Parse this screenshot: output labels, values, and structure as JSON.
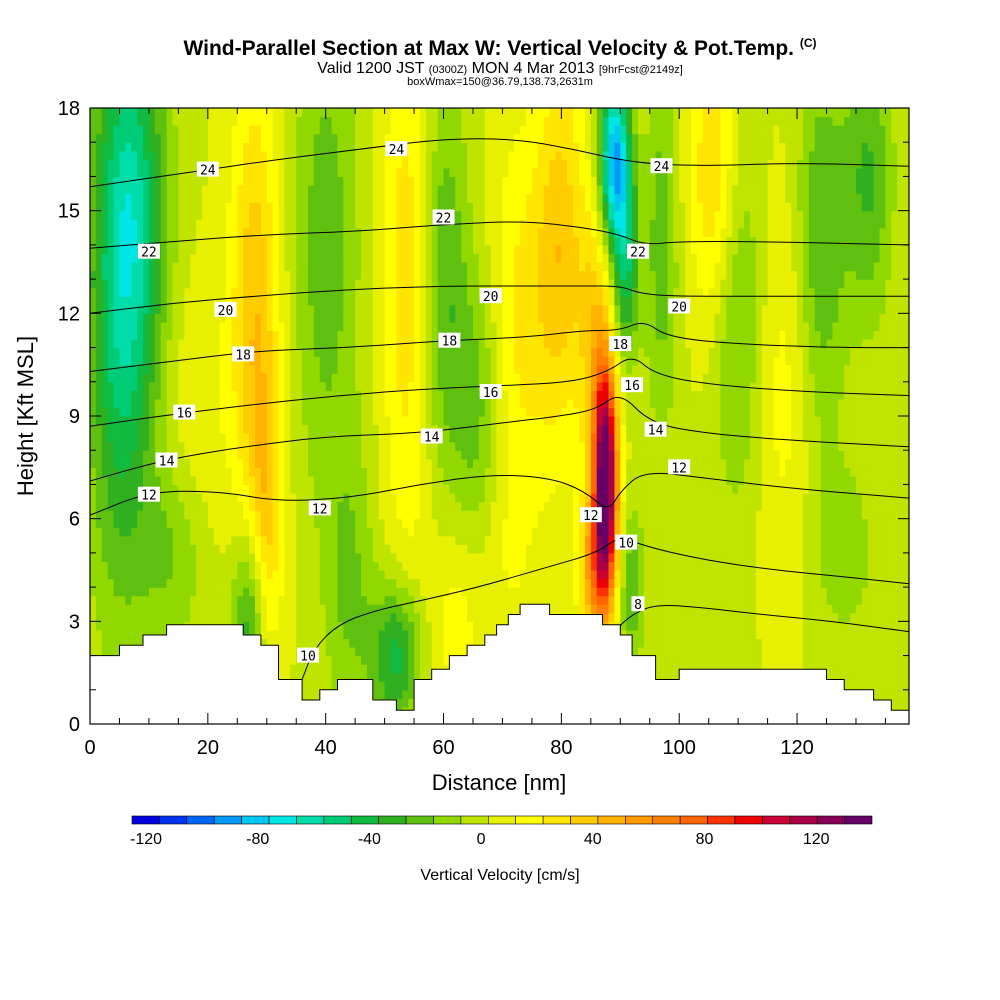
{
  "title": {
    "main": "Wind-Parallel Section at Max W: Vertical Velocity & Pot.Temp.",
    "copyright": "(C)",
    "valid_prefix": "Valid 1200 JST",
    "valid_utc": "(0300Z)",
    "valid_date": "MON 4 Mar 2013",
    "forecast": "[9hrFcst@2149z]",
    "box_info": "boxWmax=150@36.79,138.73,2631m"
  },
  "chart_data": {
    "type": "heatmap",
    "xlabel": "Distance [nm]",
    "ylabel": "Height [Kft MSL]",
    "xlim": [
      0,
      139
    ],
    "ylim": [
      0,
      18
    ],
    "x_ticks": [
      "0",
      "20",
      "40",
      "60",
      "80",
      "100",
      "120"
    ],
    "y_ticks": [
      "0",
      "3",
      "6",
      "9",
      "12",
      "15",
      "18"
    ],
    "colorbar": {
      "label": "Vertical Velocity [cm/s]",
      "range": [
        -125,
        140
      ],
      "tick_labels": [
        "-120",
        "-80",
        "-40",
        "0",
        "40",
        "80",
        "120"
      ],
      "colors": [
        "#0000e0",
        "#0033f0",
        "#0066f5",
        "#0099f5",
        "#00c8f0",
        "#00e6e6",
        "#00dcaa",
        "#00cc78",
        "#10bb40",
        "#30b020",
        "#60c010",
        "#90d800",
        "#bfe400",
        "#e6f000",
        "#ffff00",
        "#ffe600",
        "#ffcc00",
        "#ffb300",
        "#ff9900",
        "#ff7f00",
        "#ff6600",
        "#ff3300",
        "#ee0000",
        "#cc0033",
        "#aa0044",
        "#880055",
        "#660066"
      ]
    },
    "terrain_profile": [
      [
        0,
        2.0
      ],
      [
        5,
        2.0
      ],
      [
        5,
        2.3
      ],
      [
        9,
        2.3
      ],
      [
        9,
        2.6
      ],
      [
        13,
        2.6
      ],
      [
        13,
        2.9
      ],
      [
        26,
        2.9
      ],
      [
        26,
        2.6
      ],
      [
        29,
        2.6
      ],
      [
        29,
        2.3
      ],
      [
        32,
        2.3
      ],
      [
        32,
        1.3
      ],
      [
        36,
        1.3
      ],
      [
        36,
        0.7
      ],
      [
        39,
        0.7
      ],
      [
        39,
        1.0
      ],
      [
        42,
        1.0
      ],
      [
        42,
        1.3
      ],
      [
        48,
        1.3
      ],
      [
        48,
        0.7
      ],
      [
        52,
        0.7
      ],
      [
        52,
        0.4
      ],
      [
        55,
        0.4
      ],
      [
        55,
        1.3
      ],
      [
        58,
        1.3
      ],
      [
        58,
        1.6
      ],
      [
        61,
        1.6
      ],
      [
        61,
        2.0
      ],
      [
        64,
        2.0
      ],
      [
        64,
        2.3
      ],
      [
        67,
        2.3
      ],
      [
        67,
        2.6
      ],
      [
        69,
        2.6
      ],
      [
        69,
        2.9
      ],
      [
        71,
        2.9
      ],
      [
        71,
        3.2
      ],
      [
        73,
        3.2
      ],
      [
        73,
        3.5
      ],
      [
        78,
        3.5
      ],
      [
        78,
        3.2
      ],
      [
        87,
        3.2
      ],
      [
        87,
        2.9
      ],
      [
        90,
        2.9
      ],
      [
        90,
        2.6
      ],
      [
        92,
        2.6
      ],
      [
        92,
        2.0
      ],
      [
        96,
        2.0
      ],
      [
        96,
        1.3
      ],
      [
        100,
        1.3
      ],
      [
        100,
        1.6
      ],
      [
        125,
        1.6
      ],
      [
        125,
        1.3
      ],
      [
        128,
        1.3
      ],
      [
        128,
        1.0
      ],
      [
        133,
        1.0
      ],
      [
        133,
        0.7
      ],
      [
        136,
        0.7
      ],
      [
        136,
        0.4
      ],
      [
        139,
        0.4
      ]
    ],
    "velocity_features": [
      {
        "x": 5,
        "y": 12,
        "w": -45,
        "sx": 4,
        "sy": 6
      },
      {
        "x": 8,
        "y": 15,
        "w": -35,
        "sx": 4,
        "sy": 4
      },
      {
        "x": 28,
        "y": 12,
        "w": 38,
        "sx": 3,
        "sy": 5
      },
      {
        "x": 30,
        "y": 6,
        "w": 25,
        "sx": 2,
        "sy": 3
      },
      {
        "x": 27,
        "y": 3,
        "w": -40,
        "sx": 2,
        "sy": 2
      },
      {
        "x": 40,
        "y": 14,
        "w": -25,
        "sx": 4,
        "sy": 5
      },
      {
        "x": 44,
        "y": 4,
        "w": -20,
        "sx": 3,
        "sy": 3
      },
      {
        "x": 52,
        "y": 2,
        "w": -45,
        "sx": 3,
        "sy": 1.5
      },
      {
        "x": 54,
        "y": 13,
        "w": 28,
        "sx": 3,
        "sy": 6
      },
      {
        "x": 60,
        "y": 13,
        "w": -30,
        "sx": 3,
        "sy": 4
      },
      {
        "x": 62,
        "y": 3,
        "w": 15,
        "sx": 3,
        "sy": 2
      },
      {
        "x": 66,
        "y": 9,
        "w": -25,
        "sx": 3,
        "sy": 3
      },
      {
        "x": 73,
        "y": 12,
        "w": 22,
        "sx": 4,
        "sy": 4
      },
      {
        "x": 80,
        "y": 14,
        "w": 35,
        "sx": 3,
        "sy": 4
      },
      {
        "x": 86,
        "y": 11,
        "w": 35,
        "sx": 2,
        "sy": 3
      },
      {
        "x": 87.5,
        "y": 7.2,
        "w": 135,
        "sx": 1.4,
        "sy": 2.2
      },
      {
        "x": 86,
        "y": 4.5,
        "w": 55,
        "sx": 2,
        "sy": 1.5
      },
      {
        "x": 89,
        "y": 16.5,
        "w": -90,
        "sx": 1.8,
        "sy": 1.8
      },
      {
        "x": 91,
        "y": 13.5,
        "w": -45,
        "sx": 1.5,
        "sy": 2
      },
      {
        "x": 92,
        "y": 4,
        "w": -30,
        "sx": 1.5,
        "sy": 1.5
      },
      {
        "x": 97,
        "y": 14,
        "w": -25,
        "sx": 2,
        "sy": 4
      },
      {
        "x": 106,
        "y": 16,
        "w": 32,
        "sx": 3,
        "sy": 3
      },
      {
        "x": 110,
        "y": 12,
        "w": -25,
        "sx": 3,
        "sy": 4
      },
      {
        "x": 118,
        "y": 10,
        "w": 15,
        "sx": 4,
        "sy": 4
      },
      {
        "x": 124,
        "y": 14,
        "w": -30,
        "sx": 3,
        "sy": 4
      },
      {
        "x": 132,
        "y": 16,
        "w": -30,
        "sx": 3,
        "sy": 3
      },
      {
        "x": 128,
        "y": 5,
        "w": -15,
        "sx": 4,
        "sy": 2
      },
      {
        "x": 14,
        "y": 5,
        "w": -20,
        "sx": 4,
        "sy": 2
      },
      {
        "x": 18,
        "y": 9,
        "w": 10,
        "sx": 4,
        "sy": 3
      },
      {
        "x": 70,
        "y": 5,
        "w": 10,
        "sx": 4,
        "sy": 3
      }
    ],
    "theta_contours": [
      {
        "level": 8,
        "points": [
          [
            89.5,
            2.8
          ],
          [
            92,
            3.2
          ],
          [
            96,
            3.5
          ],
          [
            104,
            3.4
          ],
          [
            114,
            3.2
          ],
          [
            126,
            3.0
          ],
          [
            139,
            2.7
          ]
        ]
      },
      {
        "level": 10,
        "points": [
          [
            36,
            1.3
          ],
          [
            38,
            2.2
          ],
          [
            42,
            2.9
          ],
          [
            48,
            3.3
          ],
          [
            56,
            3.6
          ],
          [
            66,
            4.0
          ],
          [
            78,
            4.6
          ],
          [
            86,
            5.0
          ],
          [
            90,
            5.5
          ],
          [
            94,
            5.2
          ],
          [
            104,
            4.8
          ],
          [
            116,
            4.5
          ],
          [
            128,
            4.3
          ],
          [
            139,
            4.1
          ]
        ]
      },
      {
        "level": 12,
        "points": [
          [
            0,
            6.1
          ],
          [
            10,
            6.8
          ],
          [
            22,
            6.8
          ],
          [
            32,
            6.5
          ],
          [
            44,
            6.6
          ],
          [
            56,
            7.0
          ],
          [
            68,
            7.3
          ],
          [
            78,
            7.2
          ],
          [
            84,
            6.8
          ],
          [
            88,
            6.2
          ],
          [
            90,
            6.8
          ],
          [
            94,
            7.4
          ],
          [
            104,
            7.2
          ],
          [
            118,
            6.9
          ],
          [
            139,
            6.6
          ]
        ]
      },
      {
        "level": 14,
        "points": [
          [
            0,
            7.1
          ],
          [
            12,
            7.7
          ],
          [
            26,
            8.1
          ],
          [
            40,
            8.4
          ],
          [
            56,
            8.5
          ],
          [
            70,
            8.8
          ],
          [
            80,
            9.0
          ],
          [
            86,
            9.2
          ],
          [
            90,
            9.7
          ],
          [
            95,
            8.8
          ],
          [
            104,
            8.5
          ],
          [
            118,
            8.3
          ],
          [
            139,
            8.1
          ]
        ]
      },
      {
        "level": 16,
        "points": [
          [
            0,
            8.7
          ],
          [
            12,
            9.0
          ],
          [
            26,
            9.3
          ],
          [
            42,
            9.6
          ],
          [
            58,
            9.8
          ],
          [
            72,
            9.9
          ],
          [
            82,
            10.0
          ],
          [
            88,
            10.3
          ],
          [
            92,
            10.8
          ],
          [
            96,
            10.2
          ],
          [
            106,
            9.9
          ],
          [
            122,
            9.7
          ],
          [
            139,
            9.6
          ]
        ]
      },
      {
        "level": 18,
        "points": [
          [
            0,
            10.3
          ],
          [
            14,
            10.6
          ],
          [
            28,
            10.9
          ],
          [
            44,
            11.0
          ],
          [
            60,
            11.2
          ],
          [
            74,
            11.3
          ],
          [
            84,
            11.5
          ],
          [
            90,
            11.5
          ],
          [
            94,
            11.8
          ],
          [
            98,
            11.3
          ],
          [
            110,
            11.1
          ],
          [
            126,
            11.0
          ],
          [
            139,
            11.0
          ]
        ]
      },
      {
        "level": 20,
        "points": [
          [
            0,
            12.0
          ],
          [
            14,
            12.3
          ],
          [
            28,
            12.5
          ],
          [
            44,
            12.7
          ],
          [
            60,
            12.8
          ],
          [
            74,
            12.8
          ],
          [
            84,
            12.8
          ],
          [
            90,
            12.8
          ],
          [
            93,
            12.6
          ],
          [
            98,
            12.5
          ],
          [
            112,
            12.5
          ],
          [
            126,
            12.5
          ],
          [
            139,
            12.5
          ]
        ]
      },
      {
        "level": 22,
        "points": [
          [
            0,
            13.9
          ],
          [
            14,
            14.1
          ],
          [
            30,
            14.3
          ],
          [
            46,
            14.4
          ],
          [
            60,
            14.6
          ],
          [
            74,
            14.7
          ],
          [
            84,
            14.5
          ],
          [
            90,
            14.3
          ],
          [
            94,
            14.0
          ],
          [
            100,
            14.1
          ],
          [
            114,
            14.1
          ],
          [
            139,
            14.0
          ]
        ]
      },
      {
        "level": 24,
        "points": [
          [
            0,
            15.7
          ],
          [
            16,
            16.1
          ],
          [
            32,
            16.5
          ],
          [
            46,
            16.8
          ],
          [
            60,
            17.1
          ],
          [
            72,
            17.1
          ],
          [
            82,
            16.8
          ],
          [
            92,
            16.4
          ],
          [
            104,
            16.3
          ],
          [
            120,
            16.4
          ],
          [
            139,
            16.3
          ]
        ]
      }
    ],
    "contour_labels": [
      {
        "text": "24",
        "x": 20,
        "y": 16.2
      },
      {
        "text": "24",
        "x": 52,
        "y": 16.8
      },
      {
        "text": "24",
        "x": 97,
        "y": 16.3
      },
      {
        "text": "22",
        "x": 10,
        "y": 13.8
      },
      {
        "text": "22",
        "x": 60,
        "y": 14.8
      },
      {
        "text": "22",
        "x": 93,
        "y": 13.8
      },
      {
        "text": "20",
        "x": 23,
        "y": 12.1
      },
      {
        "text": "20",
        "x": 68,
        "y": 12.5
      },
      {
        "text": "20",
        "x": 100,
        "y": 12.2
      },
      {
        "text": "18",
        "x": 26,
        "y": 10.8
      },
      {
        "text": "18",
        "x": 61,
        "y": 11.2
      },
      {
        "text": "18",
        "x": 90,
        "y": 11.1
      },
      {
        "text": "16",
        "x": 16,
        "y": 9.1
      },
      {
        "text": "16",
        "x": 68,
        "y": 9.7
      },
      {
        "text": "16",
        "x": 92,
        "y": 9.9
      },
      {
        "text": "14",
        "x": 13,
        "y": 7.7
      },
      {
        "text": "14",
        "x": 58,
        "y": 8.4
      },
      {
        "text": "14",
        "x": 96,
        "y": 8.6
      },
      {
        "text": "12",
        "x": 10,
        "y": 6.7
      },
      {
        "text": "12",
        "x": 39,
        "y": 6.3
      },
      {
        "text": "12",
        "x": 85,
        "y": 6.1
      },
      {
        "text": "12",
        "x": 100,
        "y": 7.5
      },
      {
        "text": "10",
        "x": 37,
        "y": 2.0
      },
      {
        "text": "10",
        "x": 91,
        "y": 5.3
      },
      {
        "text": "8",
        "x": 93,
        "y": 3.5
      }
    ]
  }
}
